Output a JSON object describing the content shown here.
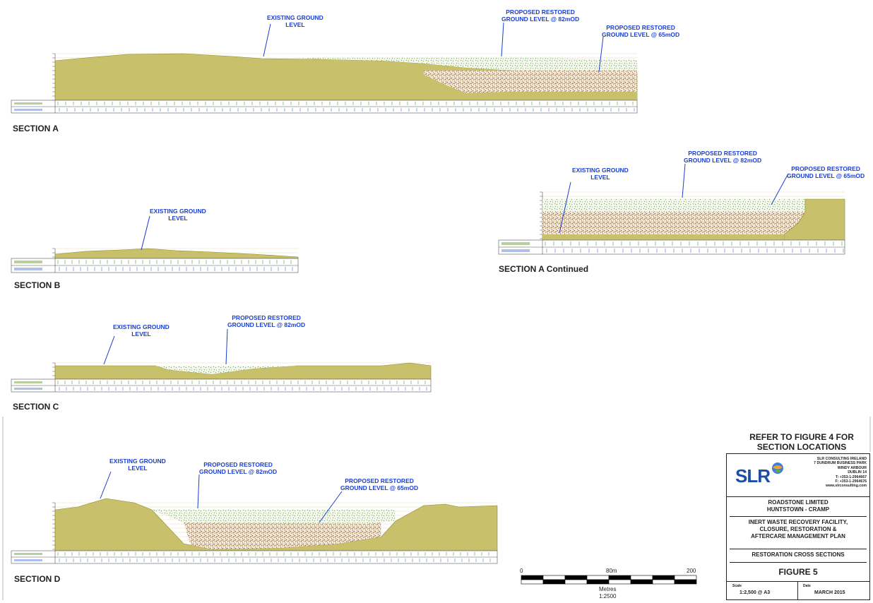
{
  "colors": {
    "ground": "#c8c06a",
    "ground_stroke": "#8f8a2a",
    "restored_82": "#7dbb45",
    "restored_65": "#8a5a2b",
    "annotation": "#1a3fd1",
    "grid_band": "#c8c06a"
  },
  "sections": [
    {
      "title": "SECTION A"
    },
    {
      "title": "SECTION A Continued"
    },
    {
      "title": "SECTION B"
    },
    {
      "title": "SECTION C"
    },
    {
      "title": "SECTION D"
    }
  ],
  "annotations": {
    "existing": "EXISTING GROUND\nLEVEL",
    "proposed_82": "PROPOSED RESTORED\nGROUND LEVEL @ 82mOD",
    "proposed_65": "PROPOSED RESTORED\nGROUND LEVEL @ 65mOD"
  },
  "scale_bar": {
    "ticks": [
      "0",
      "80m",
      "200"
    ],
    "unit": "Metres",
    "ratio": "1:2500"
  },
  "refer_note": "REFER TO FIGURE 4 FOR\nSECTION LOCATIONS",
  "title_block": {
    "logo": "SLR",
    "address": [
      "SLR CONSULTING IRELAND",
      "7 DUNDRUM BUSINESS PARK",
      "WINDY ARBOUR",
      "DUBLIN 14",
      "T: +353-1-2964667",
      "F: +353-1-2964676",
      "www.slrconsulting.com"
    ],
    "client_1": "ROADSTONE LIMITED",
    "client_2": "HUNTSTOWN - CRAMP",
    "project_1": "INERT WASTE RECOVERY FACILITY,",
    "project_2": "CLOSURE, RESTORATION &",
    "project_3": "AFTERCARE MANAGEMENT PLAN",
    "drawing_title": "RESTORATION CROSS SECTIONS",
    "figure": "FIGURE 5",
    "scale_label": "Scale",
    "scale_value": "1:2,500 @ A3",
    "date_label": "Date",
    "date_value": "MARCH 2015"
  }
}
